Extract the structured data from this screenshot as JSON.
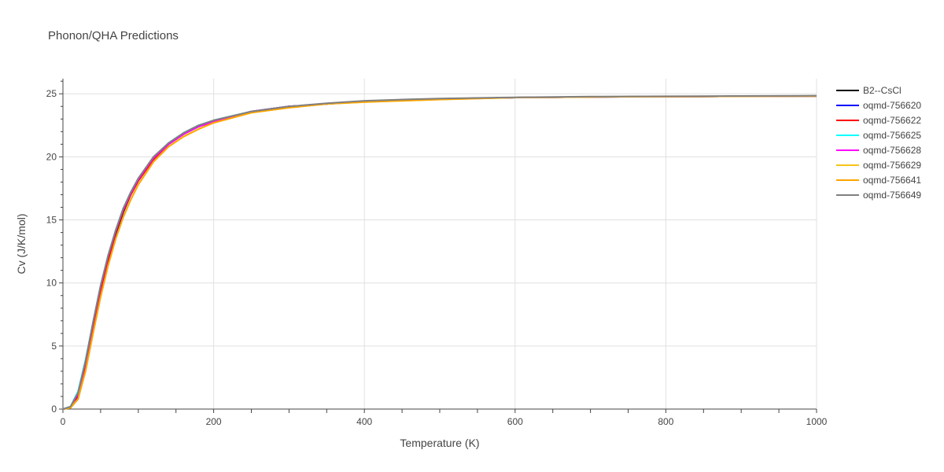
{
  "title": "Phonon/QHA Predictions",
  "chart_data": {
    "type": "line",
    "title": "Phonon/QHA Predictions",
    "xlabel": "Temperature (K)",
    "ylabel": "Cv (J/K/mol)",
    "xlim": [
      0,
      1000
    ],
    "ylim": [
      0,
      26.2
    ],
    "xticks": [
      0,
      200,
      400,
      600,
      800,
      1000
    ],
    "yticks": [
      0,
      5,
      10,
      15,
      20,
      25
    ],
    "grid": true,
    "legend_position": "top-right",
    "x": [
      0,
      10,
      20,
      30,
      40,
      50,
      60,
      70,
      80,
      90,
      100,
      120,
      140,
      160,
      180,
      200,
      250,
      300,
      350,
      400,
      450,
      500,
      600,
      700,
      800,
      900,
      1000
    ],
    "series": [
      {
        "name": "B2--CsCl",
        "color": "#000000",
        "values": [
          0,
          0.1,
          0.8,
          3.2,
          6.3,
          9.2,
          11.8,
          13.9,
          15.6,
          17.0,
          18.1,
          19.8,
          21.0,
          21.8,
          22.4,
          22.8,
          23.6,
          24.0,
          24.2,
          24.4,
          24.5,
          24.6,
          24.7,
          24.75,
          24.78,
          24.8,
          24.82
        ]
      },
      {
        "name": "oqmd-756620",
        "color": "#0000ff",
        "values": [
          0,
          0.15,
          1.1,
          3.6,
          6.7,
          9.6,
          12.1,
          14.1,
          15.8,
          17.1,
          18.2,
          19.9,
          21.0,
          21.8,
          22.4,
          22.8,
          23.6,
          24.0,
          24.2,
          24.4,
          24.5,
          24.6,
          24.7,
          24.75,
          24.78,
          24.8,
          24.82
        ]
      },
      {
        "name": "oqmd-756622",
        "color": "#ff0000",
        "values": [
          0,
          0.1,
          0.9,
          3.3,
          6.4,
          9.3,
          11.9,
          14.0,
          15.7,
          17.0,
          18.1,
          19.8,
          21.0,
          21.8,
          22.4,
          22.8,
          23.6,
          24.0,
          24.2,
          24.4,
          24.5,
          24.6,
          24.7,
          24.75,
          24.78,
          24.8,
          24.82
        ]
      },
      {
        "name": "oqmd-756625",
        "color": "#00ffff",
        "values": [
          0,
          0.2,
          1.4,
          3.9,
          6.9,
          9.8,
          12.2,
          14.2,
          15.9,
          17.2,
          18.3,
          19.9,
          21.1,
          21.9,
          22.5,
          22.9,
          23.6,
          24.0,
          24.2,
          24.4,
          24.5,
          24.6,
          24.7,
          24.75,
          24.78,
          24.8,
          24.82
        ]
      },
      {
        "name": "oqmd-756628",
        "color": "#ff00ff",
        "values": [
          0,
          0.15,
          1.2,
          3.7,
          6.8,
          9.7,
          12.1,
          14.1,
          15.8,
          17.1,
          18.2,
          19.9,
          21.0,
          21.8,
          22.4,
          22.8,
          23.6,
          24.0,
          24.2,
          24.4,
          24.5,
          24.6,
          24.7,
          24.75,
          24.78,
          24.8,
          24.82
        ]
      },
      {
        "name": "oqmd-756629",
        "color": "#f5c518",
        "values": [
          0,
          0.1,
          0.8,
          3.0,
          6.0,
          8.9,
          11.4,
          13.5,
          15.2,
          16.6,
          17.8,
          19.6,
          20.8,
          21.6,
          22.2,
          22.7,
          23.5,
          23.9,
          24.2,
          24.35,
          24.45,
          24.55,
          24.7,
          24.75,
          24.78,
          24.8,
          24.82
        ]
      },
      {
        "name": "oqmd-756641",
        "color": "#ffa500",
        "values": [
          0,
          0.1,
          0.8,
          3.0,
          6.0,
          8.9,
          11.4,
          13.5,
          15.2,
          16.6,
          17.8,
          19.6,
          20.8,
          21.6,
          22.2,
          22.7,
          23.5,
          23.9,
          24.2,
          24.35,
          24.45,
          24.55,
          24.7,
          24.75,
          24.78,
          24.8,
          24.82
        ]
      },
      {
        "name": "oqmd-756649",
        "color": "#808080",
        "values": [
          0,
          0.2,
          1.3,
          3.8,
          6.9,
          9.8,
          12.2,
          14.2,
          15.9,
          17.2,
          18.3,
          20.0,
          21.1,
          21.9,
          22.5,
          22.9,
          23.6,
          24.0,
          24.25,
          24.45,
          24.55,
          24.62,
          24.72,
          24.78,
          24.8,
          24.83,
          24.85
        ]
      }
    ]
  }
}
